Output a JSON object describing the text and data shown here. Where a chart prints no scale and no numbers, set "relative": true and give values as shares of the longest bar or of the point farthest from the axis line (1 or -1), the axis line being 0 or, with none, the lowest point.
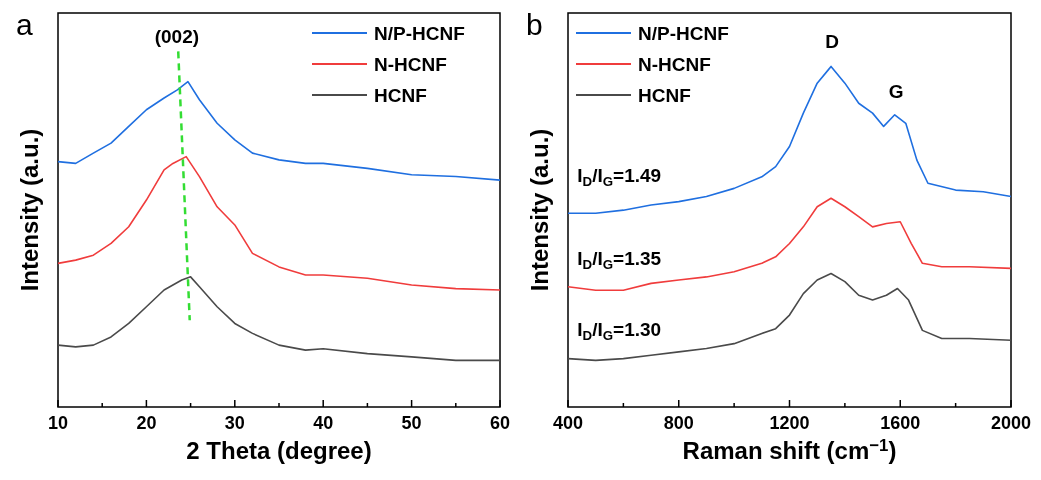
{
  "chart_data": [
    {
      "type": "line",
      "title": "a",
      "xlabel": "2 Theta (degree)",
      "ylabel": "Intensity (a.u.)",
      "relative": true,
      "legend": "top right",
      "annotations": [
        "(002)"
      ],
      "xlim": [
        10,
        60
      ],
      "xticks": [
        10,
        {
          "value": 15,
          "label": null
        },
        20,
        {
          "value": 25,
          "label": null
        },
        30,
        {
          "value": 35,
          "label": null
        },
        40,
        {
          "value": 45,
          "label": null
        },
        50,
        {
          "value": 55,
          "label": null
        },
        60
      ],
      "series": [
        {
          "name": "N/P-HCNF",
          "color": "#1f6fe0",
          "x": [
            10,
            12,
            14,
            16,
            18,
            20,
            22,
            23.5,
            24.7,
            26,
            28,
            30,
            32,
            35,
            38,
            40,
            45,
            50,
            55,
            60
          ],
          "values": [
            0.69,
            0.685,
            0.714,
            0.742,
            0.789,
            0.836,
            0.869,
            0.892,
            0.915,
            0.864,
            0.798,
            0.751,
            0.714,
            0.695,
            0.685,
            0.685,
            0.671,
            0.653,
            0.648,
            0.638
          ]
        },
        {
          "name": "N-HCNF",
          "color": "#f03c3c",
          "x": [
            10,
            12,
            14,
            16,
            18,
            20,
            22,
            23,
            24.5,
            26,
            28,
            30,
            32,
            35,
            38,
            40,
            45,
            50,
            55,
            60
          ],
          "values": [
            0.404,
            0.413,
            0.427,
            0.46,
            0.507,
            0.582,
            0.667,
            0.685,
            0.704,
            0.648,
            0.563,
            0.512,
            0.432,
            0.394,
            0.371,
            0.371,
            0.362,
            0.343,
            0.333,
            0.329
          ]
        },
        {
          "name": "HCNF",
          "color": "#4a4a4a",
          "x": [
            10,
            12,
            14,
            16,
            18,
            20,
            22,
            24,
            25,
            26,
            28,
            30,
            32,
            35,
            38,
            40,
            45,
            50,
            55,
            60
          ],
          "values": [
            0.174,
            0.169,
            0.174,
            0.197,
            0.235,
            0.282,
            0.329,
            0.357,
            0.366,
            0.338,
            0.282,
            0.235,
            0.207,
            0.174,
            0.16,
            0.164,
            0.15,
            0.141,
            0.131,
            0.131
          ]
        },
        {
          "color": "#33dd33",
          "line_style": "dashed",
          "x": [
            23.6,
            24.9
          ],
          "values": [
            1,
            0.244
          ]
        }
      ]
    },
    {
      "type": "line",
      "title": "b",
      "xlabel": "Raman shift (cm$^{−1}$)",
      "ylabel": "Intensity (a.u.)",
      "relative": true,
      "legend": "top left",
      "annotations": [
        "D",
        "G",
        "I$_{D}$/I$_{G}$=1.49",
        "I$_{D}$/I$_{G}$=1.35",
        "I$_{D}$/I$_{G}$=1.30"
      ],
      "xlim": [
        400,
        2000
      ],
      "xticks": [
        400,
        {
          "value": 600,
          "label": null
        },
        800,
        {
          "value": 1000,
          "label": null
        },
        1200,
        {
          "value": 1400,
          "label": null
        },
        1600,
        {
          "value": 1800,
          "label": null
        },
        2000
      ],
      "series": [
        {
          "name": "N/P-HCNF",
          "color": "#1f6fe0",
          "x": [
            400,
            500,
            600,
            700,
            800,
            900,
            1000,
            1100,
            1150,
            1200,
            1250,
            1300,
            1340,
            1350,
            1400,
            1450,
            1500,
            1540,
            1580,
            1620,
            1660,
            1700,
            1800,
            1900,
            2000
          ],
          "values": [
            0.569,
            0.569,
            0.578,
            0.593,
            0.603,
            0.618,
            0.642,
            0.676,
            0.706,
            0.765,
            0.863,
            0.951,
            0.99,
            1,
            0.951,
            0.892,
            0.863,
            0.824,
            0.858,
            0.833,
            0.725,
            0.657,
            0.637,
            0.632,
            0.618
          ]
        },
        {
          "name": "N-HCNF",
          "color": "#f03c3c",
          "x": [
            400,
            500,
            600,
            700,
            800,
            900,
            1000,
            1100,
            1150,
            1200,
            1250,
            1300,
            1350,
            1400,
            1450,
            1500,
            1550,
            1600,
            1640,
            1680,
            1750,
            1850,
            2000
          ],
          "values": [
            0.353,
            0.343,
            0.343,
            0.363,
            0.373,
            0.382,
            0.397,
            0.422,
            0.441,
            0.48,
            0.529,
            0.588,
            0.613,
            0.588,
            0.559,
            0.529,
            0.539,
            0.544,
            0.48,
            0.422,
            0.412,
            0.412,
            0.407
          ]
        },
        {
          "name": "HCNF",
          "color": "#4a4a4a",
          "x": [
            400,
            500,
            600,
            700,
            800,
            900,
            1000,
            1100,
            1150,
            1200,
            1250,
            1300,
            1350,
            1400,
            1450,
            1500,
            1550,
            1590,
            1630,
            1680,
            1750,
            1850,
            2000
          ],
          "values": [
            0.142,
            0.137,
            0.142,
            0.152,
            0.162,
            0.172,
            0.186,
            0.216,
            0.23,
            0.27,
            0.333,
            0.373,
            0.392,
            0.368,
            0.328,
            0.314,
            0.328,
            0.348,
            0.314,
            0.225,
            0.201,
            0.201,
            0.196
          ]
        }
      ]
    }
  ]
}
